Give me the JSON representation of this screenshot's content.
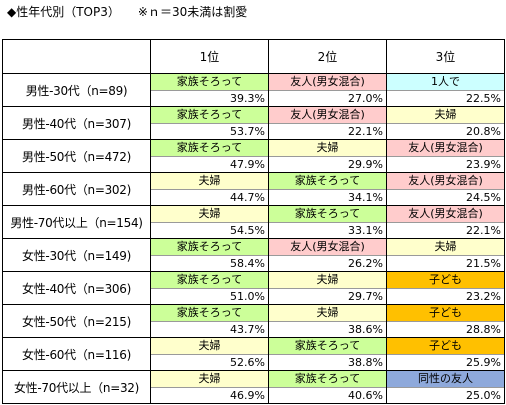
{
  "header": {
    "title": "◆性年代別（TOP3）",
    "note": "※ｎ＝30未満は割愛"
  },
  "columns": [
    "1位",
    "2位",
    "3位"
  ],
  "category_colors": {
    "家族そろって": "#ccff99",
    "友人(男女混合)": "#ffcccc",
    "1人で": "#ccffff",
    "夫婦": "#ffffcc",
    "子ども": "#ffc000",
    "同性の友人": "#8ea9db"
  },
  "rows": [
    {
      "label": "男性-30代（n=89)",
      "ranks": [
        {
          "name": "家族そろって",
          "pct": "39.3%",
          "value": 39.3
        },
        {
          "name": "友人(男女混合)",
          "pct": "27.0%",
          "value": 27.0
        },
        {
          "name": "1人で",
          "pct": "22.5%",
          "value": 22.5
        }
      ]
    },
    {
      "label": "男性-40代（n=307)",
      "ranks": [
        {
          "name": "家族そろって",
          "pct": "53.7%",
          "value": 53.7
        },
        {
          "name": "友人(男女混合)",
          "pct": "22.1%",
          "value": 22.1
        },
        {
          "name": "夫婦",
          "pct": "20.8%",
          "value": 20.8
        }
      ]
    },
    {
      "label": "男性-50代（n=472)",
      "ranks": [
        {
          "name": "家族そろって",
          "pct": "47.9%",
          "value": 47.9
        },
        {
          "name": "夫婦",
          "pct": "29.9%",
          "value": 29.9
        },
        {
          "name": "友人(男女混合)",
          "pct": "23.9%",
          "value": 23.9
        }
      ]
    },
    {
      "label": "男性-60代（n=302)",
      "ranks": [
        {
          "name": "夫婦",
          "pct": "44.7%",
          "value": 44.7
        },
        {
          "name": "家族そろって",
          "pct": "34.1%",
          "value": 34.1
        },
        {
          "name": "友人(男女混合)",
          "pct": "24.5%",
          "value": 24.5
        }
      ]
    },
    {
      "label": "男性-70代以上（n=154)",
      "ranks": [
        {
          "name": "夫婦",
          "pct": "54.5%",
          "value": 54.5
        },
        {
          "name": "家族そろって",
          "pct": "33.1%",
          "value": 33.1
        },
        {
          "name": "友人(男女混合)",
          "pct": "22.1%",
          "value": 22.1
        }
      ]
    },
    {
      "label": "女性-30代（n=149)",
      "ranks": [
        {
          "name": "家族そろって",
          "pct": "58.4%",
          "value": 58.4
        },
        {
          "name": "友人(男女混合)",
          "pct": "26.2%",
          "value": 26.2
        },
        {
          "name": "夫婦",
          "pct": "21.5%",
          "value": 21.5
        }
      ]
    },
    {
      "label": "女性-40代（n=306)",
      "ranks": [
        {
          "name": "家族そろって",
          "pct": "51.0%",
          "value": 51.0
        },
        {
          "name": "夫婦",
          "pct": "29.7%",
          "value": 29.7
        },
        {
          "name": "子ども",
          "pct": "23.2%",
          "value": 23.2
        }
      ]
    },
    {
      "label": "女性-50代（n=215)",
      "ranks": [
        {
          "name": "家族そろって",
          "pct": "43.7%",
          "value": 43.7
        },
        {
          "name": "夫婦",
          "pct": "38.6%",
          "value": 38.6
        },
        {
          "name": "子ども",
          "pct": "28.8%",
          "value": 28.8
        }
      ]
    },
    {
      "label": "女性-60代（n=116)",
      "ranks": [
        {
          "name": "夫婦",
          "pct": "52.6%",
          "value": 52.6
        },
        {
          "name": "家族そろって",
          "pct": "38.8%",
          "value": 38.8
        },
        {
          "name": "子ども",
          "pct": "25.9%",
          "value": 25.9
        }
      ]
    },
    {
      "label": "女性-70代以上（n=32)",
      "ranks": [
        {
          "name": "夫婦",
          "pct": "46.9%",
          "value": 46.9
        },
        {
          "name": "家族そろって",
          "pct": "40.6%",
          "value": 40.6
        },
        {
          "name": "同性の友人",
          "pct": "25.0%",
          "value": 25.0
        }
      ]
    }
  ]
}
